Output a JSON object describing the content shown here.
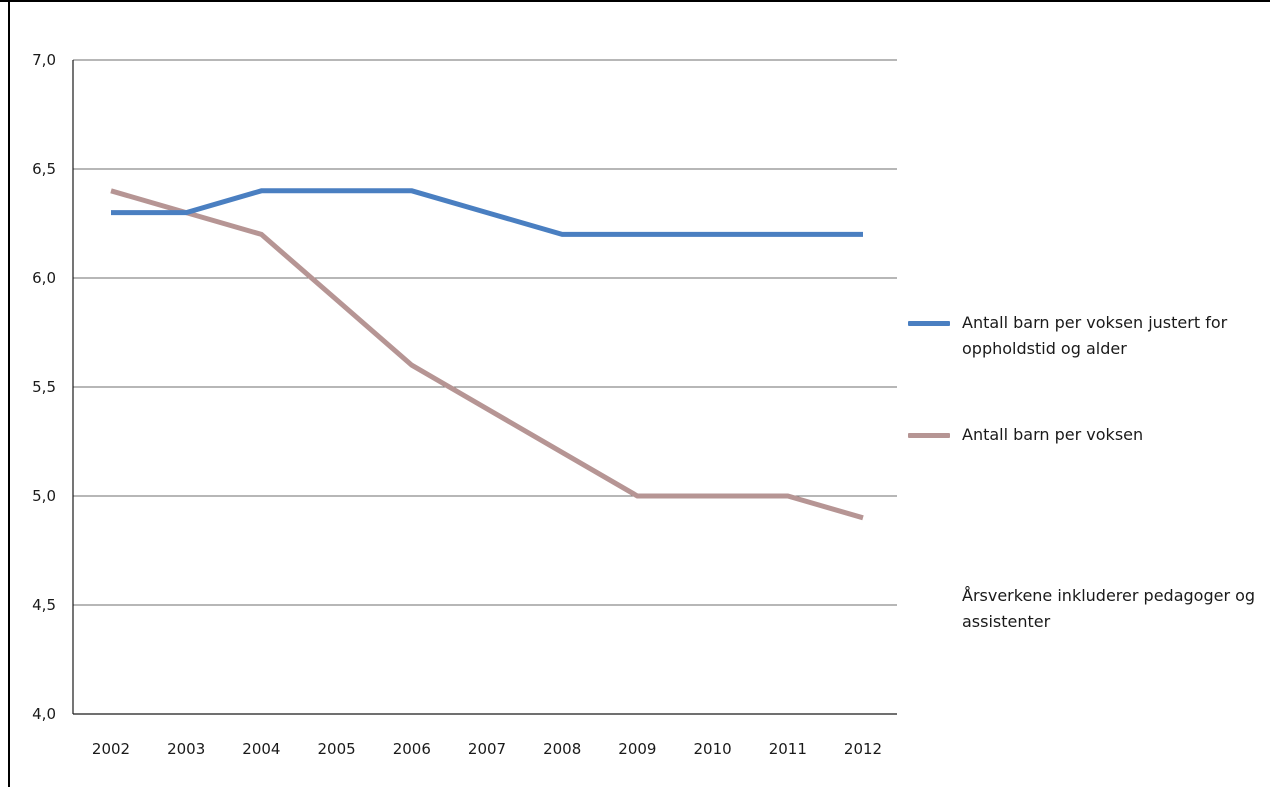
{
  "chart_data": {
    "type": "line",
    "x": [
      "2002",
      "2003",
      "2004",
      "2005",
      "2006",
      "2007",
      "2008",
      "2009",
      "2010",
      "2011",
      "2012"
    ],
    "series": [
      {
        "name": "Antall barn per voksen justert for oppholdstid og alder",
        "color": "#4a7fc1",
        "values": [
          6.3,
          6.3,
          6.4,
          6.4,
          6.4,
          6.3,
          6.2,
          6.2,
          6.2,
          6.2,
          6.2
        ]
      },
      {
        "name": "Antall barn per voksen",
        "color": "#b69594",
        "values": [
          6.4,
          6.3,
          6.2,
          5.9,
          5.6,
          5.4,
          5.2,
          5.0,
          5.0,
          5.0,
          4.9
        ]
      }
    ],
    "ylim": [
      4.0,
      7.0
    ],
    "yticks": [
      4.0,
      4.5,
      5.0,
      5.5,
      6.0,
      6.5,
      7.0
    ],
    "ytick_labels": [
      "4,0",
      "4,5",
      "5,0",
      "5,5",
      "6,0",
      "6,5",
      "7,0"
    ],
    "title": "",
    "xlabel": "",
    "ylabel": "",
    "grid": "horizontal",
    "legend_position": "right",
    "annotation": "Årsverkene inkluderer pedagoger og assistenter"
  },
  "colors": {
    "gridline": "#6f6f6f",
    "axis": "#1a1a1a"
  }
}
